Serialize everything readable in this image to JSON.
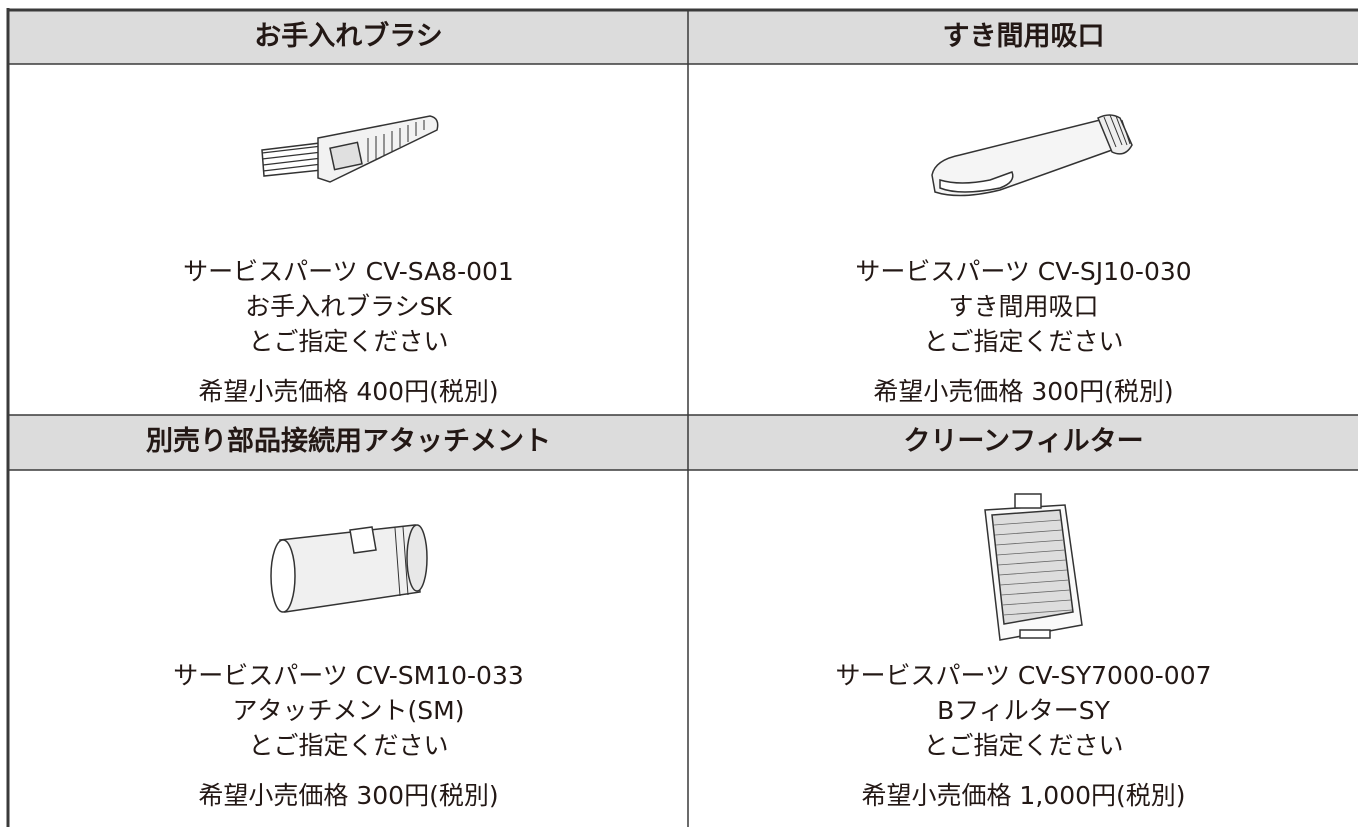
{
  "table": {
    "cells": [
      {
        "title": "お手入れブラシ",
        "lines": [
          "サービスパーツ CV-SA8-001",
          "お手入れブラシSK",
          "とご指定ください"
        ],
        "price": "希望小売価格 400円(税別)"
      },
      {
        "title": "すき間用吸口",
        "lines": [
          "サービスパーツ CV-SJ10-030",
          "すき間用吸口",
          "とご指定ください"
        ],
        "price": "希望小売価格 300円(税別)"
      },
      {
        "title": "別売り部品接続用アタッチメント",
        "lines": [
          "サービスパーツ CV-SM10-033",
          "アタッチメント(SM)",
          "とご指定ください"
        ],
        "price": "希望小売価格 300円(税別)"
      },
      {
        "title": "クリーンフィルター",
        "lines": [
          "サービスパーツ CV-SY7000-007",
          "BフィルターSY",
          "とご指定ください"
        ],
        "price": "希望小売価格 1,000円(税別)"
      }
    ]
  }
}
